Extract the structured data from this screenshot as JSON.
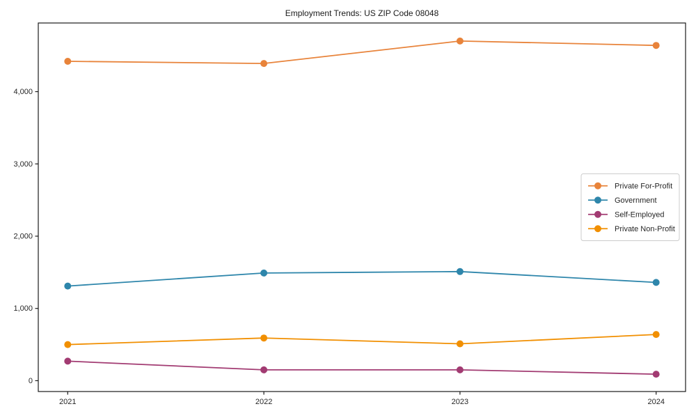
{
  "chart_data": {
    "type": "line",
    "title": "Employment Trends: US ZIP Code 08048",
    "xlabel": "",
    "ylabel": "",
    "categories": [
      "2021",
      "2022",
      "2023",
      "2024"
    ],
    "series": [
      {
        "name": "Private For-Profit",
        "color": "#E8833A",
        "values": [
          4420,
          4390,
          4700,
          4640
        ]
      },
      {
        "name": "Government",
        "color": "#2E86AB",
        "values": [
          1310,
          1490,
          1510,
          1360
        ]
      },
      {
        "name": "Self-Employed",
        "color": "#A23B72",
        "values": [
          270,
          150,
          150,
          90
        ]
      },
      {
        "name": "Private Non-Profit",
        "color": "#F18F01",
        "values": [
          500,
          590,
          510,
          640
        ]
      }
    ],
    "yticks": [
      0,
      1000,
      2000,
      3000,
      4000
    ],
    "ytick_labels": [
      "0",
      "1,000",
      "2,000",
      "3,000",
      "4,000"
    ],
    "ylim": [
      -150,
      4950
    ],
    "grid": false,
    "legend_position": "center right",
    "axis_color": "#1a1a1a",
    "tick_label_color": "#262626",
    "legend_border_color": "#cccccc",
    "background_color": "#ffffff"
  }
}
